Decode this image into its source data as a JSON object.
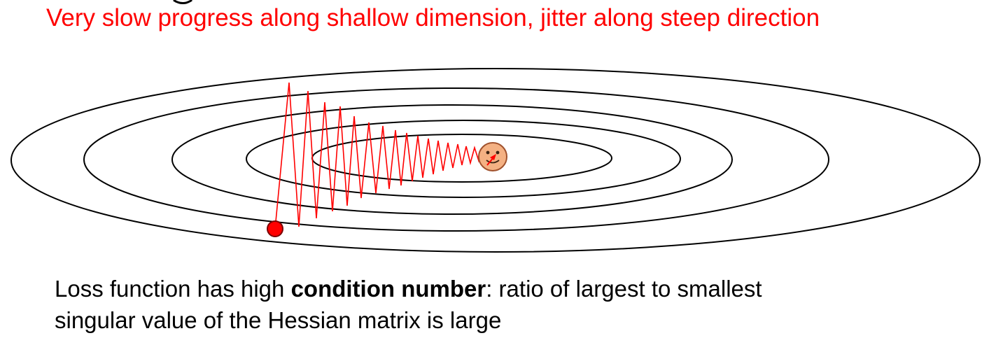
{
  "heading": {
    "text": "Very slow progress along shallow dimension, jitter along steep direction",
    "color": "#ff0000"
  },
  "caption": {
    "before_bold": "Loss function has high ",
    "bold": "condition number",
    "after_bold": ": ratio of largest to smallest",
    "line2": "singular value of the Hessian matrix is large"
  },
  "diagram": {
    "contour_count": 5,
    "contour_color": "#000000",
    "path_color": "#ff0000",
    "start_marker_color": "#ff0000",
    "minimum_icon": "smiley-face-icon",
    "minimum_face_color": "#f4b183"
  }
}
